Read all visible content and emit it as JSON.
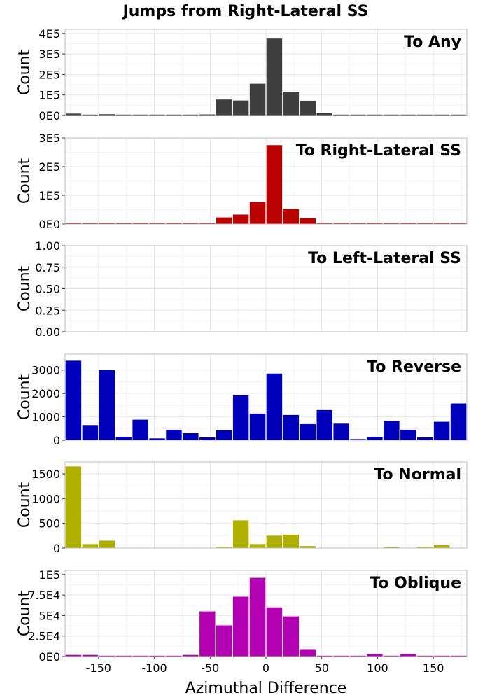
{
  "chart_data": {
    "type": "bar",
    "title": "Jumps from Right-Lateral SS",
    "xlabel": "Azimuthal Difference",
    "xlim": [
      -180,
      180
    ],
    "bin_width": 15,
    "x_ticks": [
      -150,
      -100,
      -50,
      0,
      50,
      100,
      150
    ],
    "x_tick_labels": [
      "-150",
      "-100",
      "-50",
      "0",
      "50",
      "100",
      "150"
    ],
    "grid": true,
    "x": [
      -172.5,
      -157.5,
      -142.5,
      -127.5,
      -112.5,
      -97.5,
      -82.5,
      -67.5,
      -52.5,
      -37.5,
      -22.5,
      -7.5,
      7.5,
      22.5,
      37.5,
      52.5,
      67.5,
      82.5,
      97.5,
      112.5,
      127.5,
      142.5,
      157.5,
      172.5
    ],
    "panels": [
      {
        "name": "To Any",
        "ylabel": "Count",
        "color": "#3f3f3f",
        "ylim": [
          0,
          420000
        ],
        "y_ticks": [
          0,
          100000,
          200000,
          300000,
          400000
        ],
        "y_tick_labels": [
          "0E0",
          "1E5",
          "2E5",
          "3E5",
          "4E5"
        ],
        "values": [
          9000,
          4000,
          6000,
          2000,
          3000,
          2000,
          3000,
          3000,
          5000,
          78000,
          73000,
          155000,
          375000,
          115000,
          72000,
          12000,
          4000,
          3000,
          2000,
          4000,
          3000,
          4000,
          3000,
          4000
        ]
      },
      {
        "name": "To Right-Lateral SS",
        "ylabel": "Count",
        "color": "#bb0000",
        "ylim": [
          0,
          300000
        ],
        "y_ticks": [
          0,
          100000,
          200000,
          300000
        ],
        "y_tick_labels": [
          "0E0",
          "1E5",
          "2E5",
          "3E5"
        ],
        "values": [
          1000,
          1000,
          1000,
          500,
          1000,
          500,
          1000,
          500,
          2000,
          23000,
          33000,
          77000,
          275000,
          52000,
          20000,
          500,
          500,
          500,
          500,
          500,
          500,
          500,
          1000,
          500
        ]
      },
      {
        "name": "To Left-Lateral SS",
        "ylabel": "Count",
        "color": "#0000bb",
        "ylim": [
          0,
          1
        ],
        "y_ticks": [
          0,
          0.25,
          0.5,
          0.75,
          1
        ],
        "y_tick_labels": [
          "0.00",
          "0.25",
          "0.50",
          "0.75",
          "1.00"
        ],
        "values": [
          0,
          0,
          0,
          0,
          0,
          0,
          0,
          0,
          0,
          0,
          0,
          0,
          0,
          0,
          0,
          0,
          0,
          0,
          0,
          0,
          0,
          0,
          0,
          0
        ]
      },
      {
        "name": "To Reverse",
        "ylabel": "Count",
        "color": "#0000bb",
        "ylim": [
          0,
          3680
        ],
        "y_ticks": [
          0,
          1000,
          2000,
          3000
        ],
        "y_tick_labels": [
          "0",
          "1000",
          "2000",
          "3000"
        ],
        "values": [
          3400,
          650,
          3000,
          150,
          880,
          80,
          450,
          300,
          120,
          430,
          1920,
          1140,
          2850,
          1080,
          690,
          1290,
          710,
          50,
          150,
          830,
          450,
          120,
          790,
          1570
        ]
      },
      {
        "name": "To Normal",
        "ylabel": "Count",
        "color": "#b0b000",
        "ylim": [
          0,
          1740
        ],
        "y_ticks": [
          0,
          500,
          1000,
          1500
        ],
        "y_tick_labels": [
          "0",
          "500",
          "1000",
          "1500"
        ],
        "values": [
          1650,
          80,
          150,
          0,
          0,
          0,
          0,
          0,
          0,
          20,
          560,
          80,
          250,
          270,
          40,
          0,
          0,
          0,
          0,
          10,
          0,
          20,
          60,
          0
        ]
      },
      {
        "name": "To Oblique",
        "ylabel": "Count",
        "color": "#b300b3",
        "ylim": [
          0,
          105000
        ],
        "y_ticks": [
          0,
          25000,
          50000,
          75000,
          100000
        ],
        "y_tick_labels": [
          "0E0",
          "2.5E4",
          "5E4",
          "7.5E4",
          "1E5"
        ],
        "values": [
          2000,
          2000,
          1000,
          500,
          1000,
          500,
          1000,
          2000,
          55000,
          38000,
          73000,
          96000,
          60000,
          49000,
          9000,
          1000,
          500,
          500,
          3000,
          500,
          3000,
          1000,
          1000,
          1000
        ]
      }
    ]
  }
}
